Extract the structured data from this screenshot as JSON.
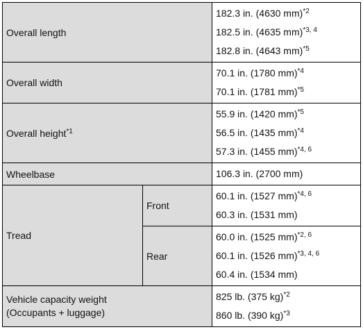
{
  "table": {
    "rows": [
      {
        "label": "Overall length",
        "values": [
          {
            "text": "182.3 in. (4630 mm)",
            "note": "*2"
          },
          {
            "text": "182.5 in. (4635 mm)",
            "note": "*3, 4"
          },
          {
            "text": "182.8 in. (4643 mm)",
            "note": "*5"
          }
        ]
      },
      {
        "label": "Overall width",
        "values": [
          {
            "text": "70.1 in. (1780 mm)",
            "note": "*4"
          },
          {
            "text": "70.1 in. (1781 mm)",
            "note": "*5"
          }
        ]
      },
      {
        "label": "Overall height",
        "label_note": "*1",
        "values": [
          {
            "text": "55.9 in. (1420 mm)",
            "note": "*5"
          },
          {
            "text": "56.5 in. (1435 mm)",
            "note": "*4"
          },
          {
            "text": "57.3 in. (1455 mm)",
            "note": "*4, 6"
          }
        ]
      },
      {
        "label": "Wheelbase",
        "values": [
          {
            "text": "106.3 in. (2700 mm)"
          }
        ]
      },
      {
        "label": "Tread",
        "subrows": [
          {
            "label": "Front",
            "values": [
              {
                "text": "60.1 in. (1527 mm)",
                "note": "*4, 6"
              },
              {
                "text": "60.3 in. (1531 mm)"
              }
            ]
          },
          {
            "label": "Rear",
            "values": [
              {
                "text": "60.0 in. (1525 mm)",
                "note": "*2, 6"
              },
              {
                "text": "60.1 in. (1526 mm)",
                "note": "*3, 4, 6"
              },
              {
                "text": "60.4 in. (1534 mm)"
              }
            ]
          }
        ]
      },
      {
        "label_lines": [
          "Vehicle capacity weight",
          "(Occupants + luggage)"
        ],
        "values": [
          {
            "text": "825 lb. (375 kg)",
            "note": "*2"
          },
          {
            "text": "860 lb. (390 kg)",
            "note": "*3"
          }
        ]
      }
    ]
  }
}
